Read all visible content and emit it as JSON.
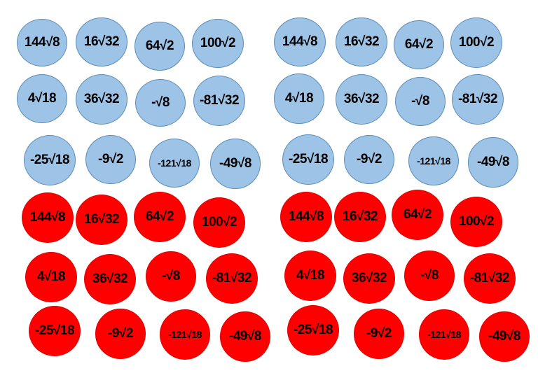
{
  "blue_left": [
    "144√8",
    "16√32",
    "64√2",
    "100√2",
    "4√18",
    "36√32",
    "-√8",
    "-81√32",
    "-25√18",
    "-9√2",
    "-121√18",
    "-49√8"
  ],
  "blue_right": [
    "144√8",
    "16√32",
    "64√2",
    "100√2",
    "4√18",
    "36√32",
    "-√8",
    "-81√32",
    "-25√18",
    "-9√2",
    "-121√18",
    "-49√8"
  ],
  "red_left": [
    "144√8",
    "16√32",
    "64√2",
    "100√2",
    "4√18",
    "36√32",
    "-√8",
    "-81√32",
    "-25√18",
    "-9√2",
    "-121√18",
    "-49√8"
  ],
  "red_right": [
    "144√8",
    "16√32",
    "64√2",
    "100√2",
    "4√18",
    "36√32",
    "-√8",
    "-81√32",
    "-25√18",
    "-9√2",
    "-121√18",
    "-49√8"
  ],
  "colors": {
    "blue_fill": "#9dc3e6",
    "blue_border": "#5b8db8",
    "red_fill": "#ff0000"
  }
}
